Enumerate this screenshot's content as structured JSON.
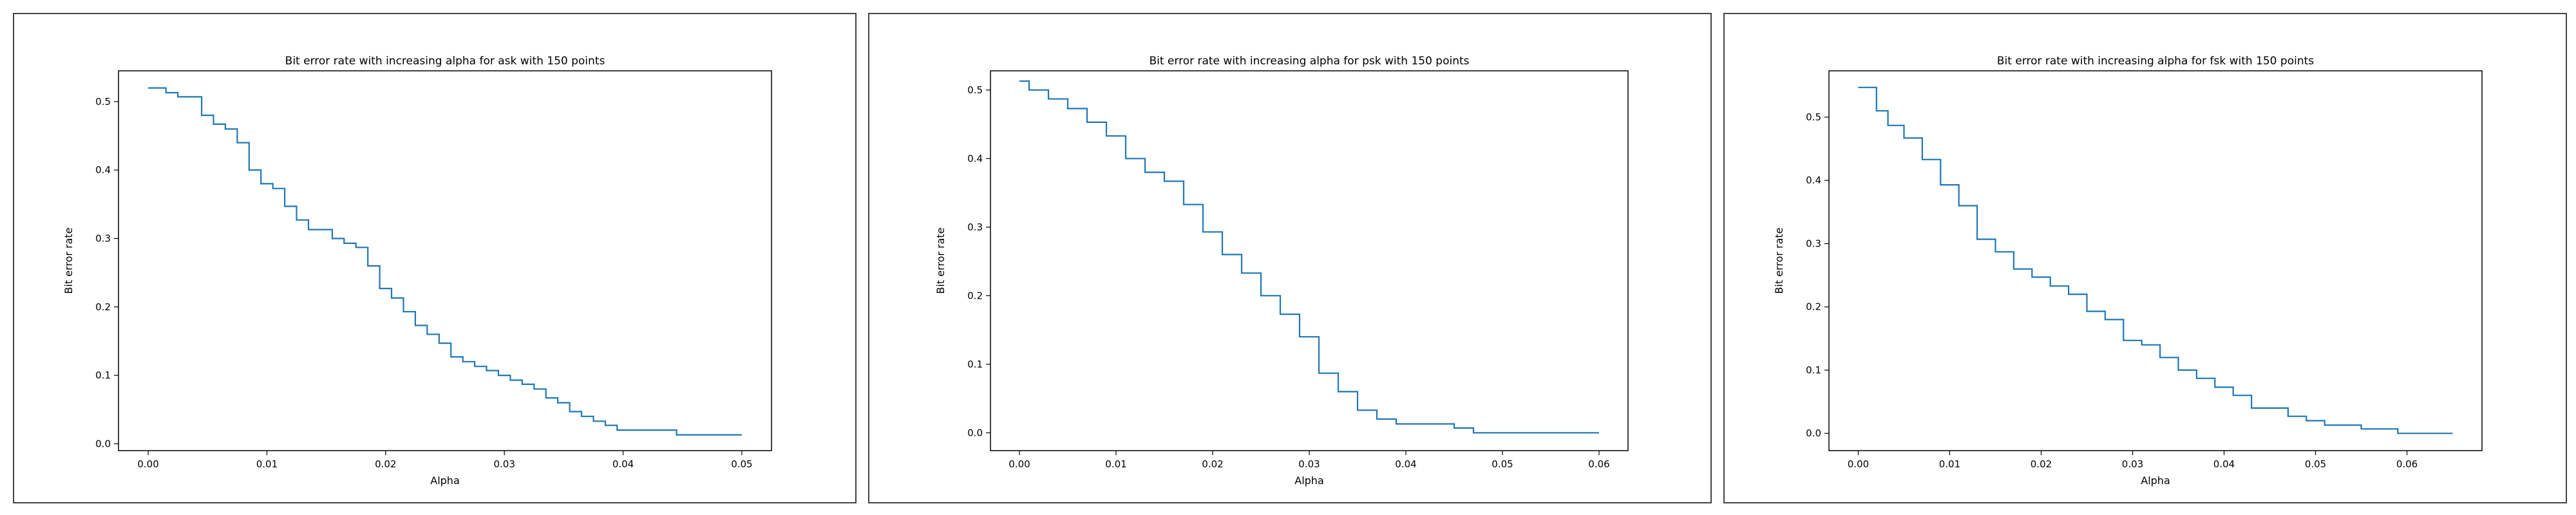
{
  "chart_data": [
    {
      "type": "line",
      "title": "Bit error rate with increasing alpha for ask with 150 points",
      "xlabel": "Alpha",
      "ylabel": "Bit error rate",
      "xlim": [
        -0.0025,
        0.0525
      ],
      "ylim": [
        -0.01,
        0.545
      ],
      "xticks": [
        0.0,
        0.01,
        0.02,
        0.03,
        0.04,
        0.05
      ],
      "xtick_labels": [
        "0.00",
        "0.01",
        "0.02",
        "0.03",
        "0.04",
        "0.05"
      ],
      "yticks": [
        0.0,
        0.1,
        0.2,
        0.3,
        0.4,
        0.5
      ],
      "ytick_labels": [
        "0.0",
        "0.1",
        "0.2",
        "0.3",
        "0.4",
        "0.5"
      ],
      "color": "#1f77b4",
      "x": [
        0.0,
        0.001,
        0.002,
        0.003,
        0.004,
        0.005,
        0.006,
        0.007,
        0.008,
        0.009,
        0.01,
        0.011,
        0.012,
        0.013,
        0.014,
        0.015,
        0.016,
        0.017,
        0.018,
        0.019,
        0.02,
        0.021,
        0.022,
        0.023,
        0.024,
        0.025,
        0.026,
        0.027,
        0.028,
        0.029,
        0.03,
        0.031,
        0.032,
        0.033,
        0.034,
        0.035,
        0.036,
        0.037,
        0.038,
        0.039,
        0.04,
        0.041,
        0.042,
        0.043,
        0.044,
        0.045,
        0.046,
        0.047,
        0.048,
        0.049,
        0.05
      ],
      "y": [
        0.52,
        0.52,
        0.513,
        0.507,
        0.507,
        0.48,
        0.467,
        0.46,
        0.44,
        0.4,
        0.38,
        0.373,
        0.347,
        0.327,
        0.313,
        0.313,
        0.3,
        0.293,
        0.287,
        0.26,
        0.227,
        0.213,
        0.193,
        0.173,
        0.16,
        0.147,
        0.127,
        0.12,
        0.113,
        0.107,
        0.1,
        0.093,
        0.087,
        0.08,
        0.067,
        0.06,
        0.047,
        0.04,
        0.033,
        0.027,
        0.02,
        0.02,
        0.02,
        0.02,
        0.02,
        0.013,
        0.013,
        0.013,
        0.013,
        0.013,
        0.013
      ]
    },
    {
      "type": "line",
      "title": "Bit error rate with increasing alpha for psk with 150 points",
      "xlabel": "Alpha",
      "ylabel": "Bit error rate",
      "xlim": [
        -0.003,
        0.063
      ],
      "ylim": [
        -0.026,
        0.528
      ],
      "xticks": [
        0.0,
        0.01,
        0.02,
        0.03,
        0.04,
        0.05,
        0.06
      ],
      "xtick_labels": [
        "0.00",
        "0.01",
        "0.02",
        "0.03",
        "0.04",
        "0.05",
        "0.06"
      ],
      "yticks": [
        0.0,
        0.1,
        0.2,
        0.3,
        0.4,
        0.5
      ],
      "ytick_labels": [
        "0.0",
        "0.1",
        "0.2",
        "0.3",
        "0.4",
        "0.5"
      ],
      "color": "#1f77b4",
      "x": [
        0.0,
        0.002,
        0.004,
        0.006,
        0.008,
        0.01,
        0.012,
        0.014,
        0.016,
        0.018,
        0.02,
        0.022,
        0.024,
        0.026,
        0.028,
        0.03,
        0.032,
        0.034,
        0.036,
        0.038,
        0.04,
        0.042,
        0.044,
        0.046,
        0.048,
        0.05,
        0.052,
        0.054,
        0.056,
        0.058,
        0.06
      ],
      "y": [
        0.513,
        0.5,
        0.487,
        0.473,
        0.453,
        0.433,
        0.4,
        0.38,
        0.367,
        0.333,
        0.293,
        0.26,
        0.233,
        0.2,
        0.173,
        0.14,
        0.087,
        0.06,
        0.033,
        0.02,
        0.013,
        0.013,
        0.013,
        0.007,
        0.0,
        0.0,
        0.0,
        0.0,
        0.0,
        0.0,
        0.0
      ]
    },
    {
      "type": "line",
      "title": "Bit error rate with increasing alpha for fsk with 150 points",
      "xlabel": "Alpha",
      "ylabel": "Bit error rate",
      "xlim": [
        -0.0032,
        0.0682
      ],
      "ylim": [
        -0.0273,
        0.5733
      ],
      "xticks": [
        0.0,
        0.01,
        0.02,
        0.03,
        0.04,
        0.05,
        0.06
      ],
      "xtick_labels": [
        "0.00",
        "0.01",
        "0.02",
        "0.03",
        "0.04",
        "0.05",
        "0.06"
      ],
      "yticks": [
        0.0,
        0.1,
        0.2,
        0.3,
        0.4,
        0.5
      ],
      "ytick_labels": [
        "0.0",
        "0.1",
        "0.2",
        "0.3",
        "0.4",
        "0.5"
      ],
      "color": "#1f77b4",
      "x": [
        0.0,
        0.0015,
        0.0025,
        0.004,
        0.006,
        0.008,
        0.01,
        0.012,
        0.014,
        0.016,
        0.018,
        0.02,
        0.022,
        0.024,
        0.026,
        0.028,
        0.03,
        0.032,
        0.034,
        0.036,
        0.038,
        0.04,
        0.042,
        0.044,
        0.046,
        0.048,
        0.05,
        0.052,
        0.054,
        0.056,
        0.058,
        0.06,
        0.062,
        0.065
      ],
      "y": [
        0.547,
        0.547,
        0.51,
        0.487,
        0.467,
        0.433,
        0.393,
        0.36,
        0.307,
        0.287,
        0.26,
        0.247,
        0.233,
        0.22,
        0.193,
        0.18,
        0.147,
        0.14,
        0.12,
        0.1,
        0.087,
        0.073,
        0.06,
        0.04,
        0.04,
        0.027,
        0.02,
        0.013,
        0.013,
        0.007,
        0.007,
        0.0,
        0.0,
        0.0
      ]
    }
  ]
}
